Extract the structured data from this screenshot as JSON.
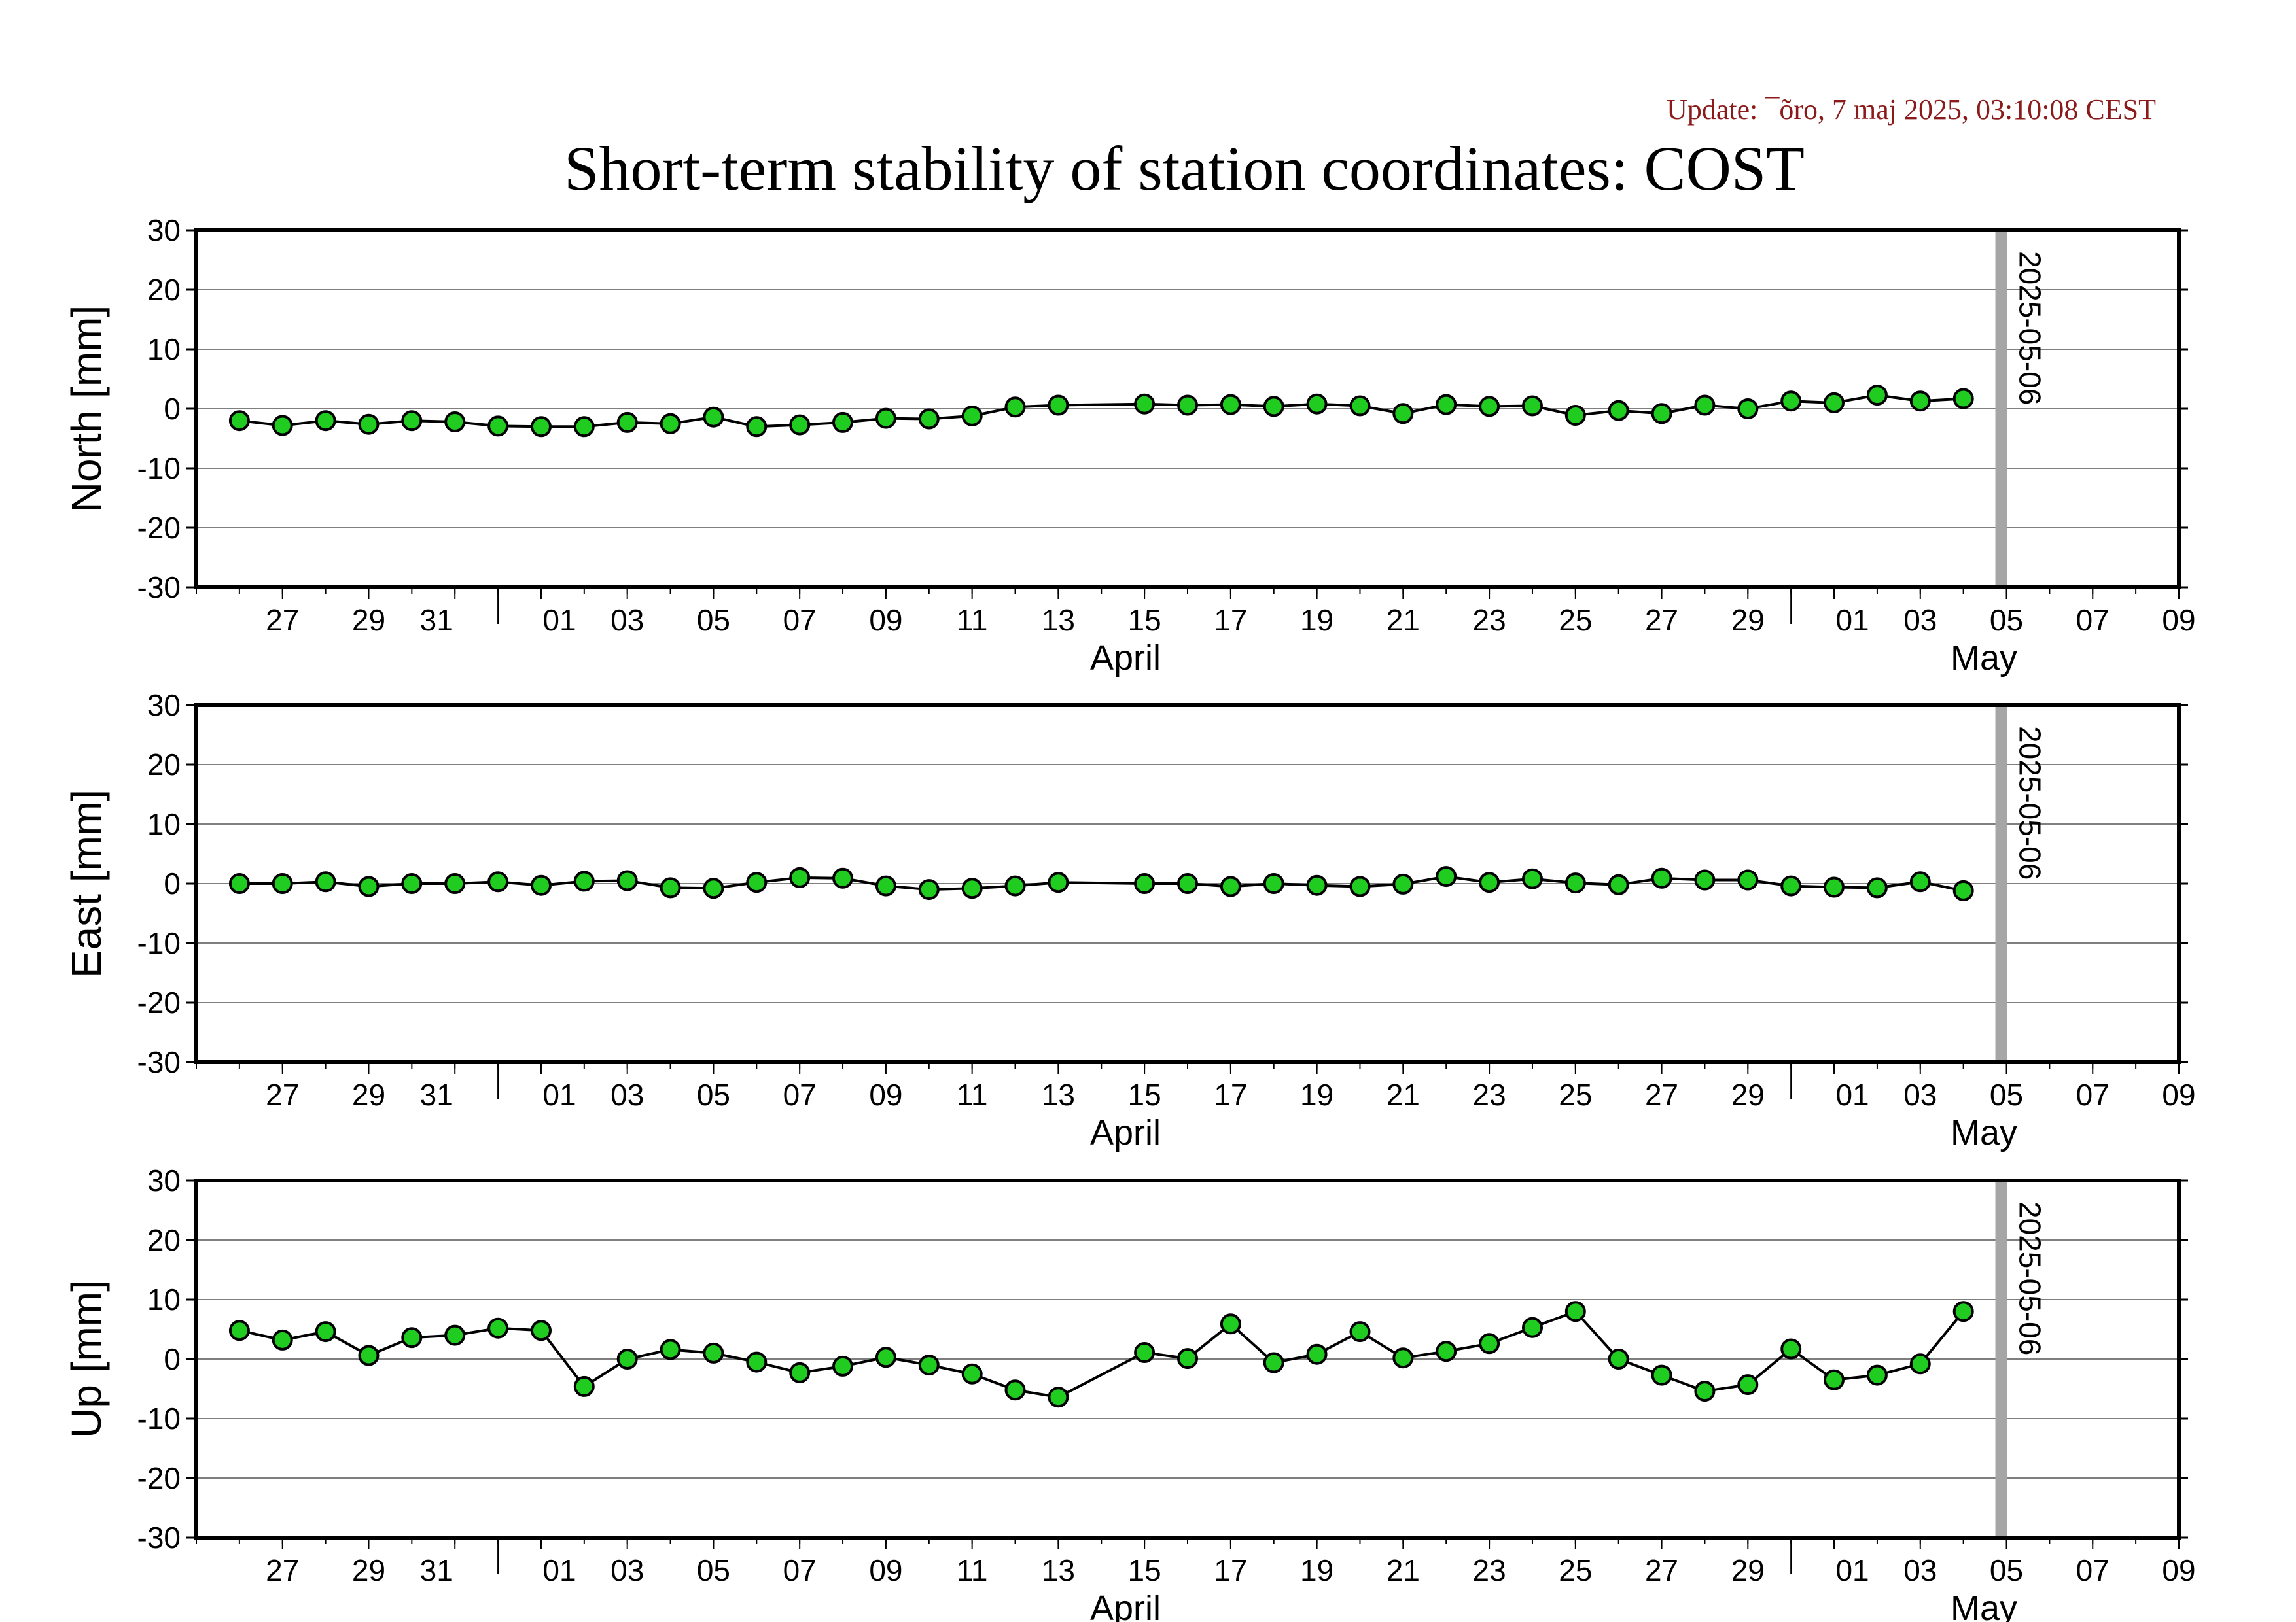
{
  "update_text": "Update: ¯õro, 7 maj 2025, 03:10:08 CEST",
  "title": "Short-term stability of station coordinates: COST",
  "colors": {
    "update_text": "#8b1a1a",
    "marker_fill": "#1fcc1f",
    "marker_stroke": "#000000",
    "line": "#000000",
    "grid": "#7f7f7f",
    "ref_line": "#a6a6a6",
    "frame": "#000000"
  },
  "chart_data": [
    {
      "type": "line",
      "panel": "north",
      "ylabel": "North [mm]",
      "ylim": [
        -30,
        30
      ],
      "yticks": [
        30,
        20,
        10,
        0,
        -10,
        -20,
        -30
      ],
      "xlim": [
        "2025-03-25",
        "2025-05-10"
      ],
      "grid": true,
      "reference_line": {
        "date": "2025-05-06",
        "label": "2025-05-06"
      },
      "x_tick_labels": [
        "27",
        "29",
        "31",
        "01",
        "03",
        "05",
        "07",
        "09",
        "11",
        "13",
        "15",
        "17",
        "19",
        "21",
        "23",
        "25",
        "27",
        "29",
        "01",
        "03",
        "05",
        "07",
        "09"
      ],
      "month_labels": [
        "April",
        "May"
      ],
      "points": [
        [
          "2025-03-26",
          -2.0
        ],
        [
          "2025-03-27",
          -2.8
        ],
        [
          "2025-03-28",
          -2.0
        ],
        [
          "2025-03-29",
          -2.6
        ],
        [
          "2025-03-30",
          -2.0
        ],
        [
          "2025-03-31",
          -2.2
        ],
        [
          "2025-04-01",
          -2.9
        ],
        [
          "2025-04-02",
          -3.0
        ],
        [
          "2025-04-03",
          -3.0
        ],
        [
          "2025-04-04",
          -2.3
        ],
        [
          "2025-04-05",
          -2.5
        ],
        [
          "2025-04-06",
          -1.4
        ],
        [
          "2025-04-07",
          -3.0
        ],
        [
          "2025-04-08",
          -2.7
        ],
        [
          "2025-04-09",
          -2.3
        ],
        [
          "2025-04-10",
          -1.6
        ],
        [
          "2025-04-11",
          -1.7
        ],
        [
          "2025-04-12",
          -1.2
        ],
        [
          "2025-04-13",
          0.3
        ],
        [
          "2025-04-14",
          0.6
        ],
        [
          "2025-04-16",
          0.8
        ],
        [
          "2025-04-17",
          0.6
        ],
        [
          "2025-04-18",
          0.7
        ],
        [
          "2025-04-19",
          0.4
        ],
        [
          "2025-04-20",
          0.8
        ],
        [
          "2025-04-21",
          0.5
        ],
        [
          "2025-04-22",
          -0.8
        ],
        [
          "2025-04-23",
          0.7
        ],
        [
          "2025-04-24",
          0.4
        ],
        [
          "2025-04-25",
          0.5
        ],
        [
          "2025-04-26",
          -1.1
        ],
        [
          "2025-04-27",
          -0.3
        ],
        [
          "2025-04-28",
          -0.8
        ],
        [
          "2025-04-29",
          0.6
        ],
        [
          "2025-04-30",
          0.0
        ],
        [
          "2025-05-01",
          1.3
        ],
        [
          "2025-05-02",
          1.0
        ],
        [
          "2025-05-03",
          2.3
        ],
        [
          "2025-05-04",
          1.3
        ],
        [
          "2025-05-05",
          1.7
        ]
      ]
    },
    {
      "type": "line",
      "panel": "east",
      "ylabel": "East [mm]",
      "ylim": [
        -30,
        30
      ],
      "yticks": [
        30,
        20,
        10,
        0,
        -10,
        -20,
        -30
      ],
      "xlim": [
        "2025-03-25",
        "2025-05-10"
      ],
      "grid": true,
      "reference_line": {
        "date": "2025-05-06",
        "label": "2025-05-06"
      },
      "x_tick_labels": [
        "27",
        "29",
        "31",
        "01",
        "03",
        "05",
        "07",
        "09",
        "11",
        "13",
        "15",
        "17",
        "19",
        "21",
        "23",
        "25",
        "27",
        "29",
        "01",
        "03",
        "05",
        "07",
        "09"
      ],
      "month_labels": [
        "April",
        "May"
      ],
      "points": [
        [
          "2025-03-26",
          0.0
        ],
        [
          "2025-03-27",
          0.0
        ],
        [
          "2025-03-28",
          0.3
        ],
        [
          "2025-03-29",
          -0.5
        ],
        [
          "2025-03-30",
          0.0
        ],
        [
          "2025-03-31",
          0.0
        ],
        [
          "2025-04-01",
          0.3
        ],
        [
          "2025-04-02",
          -0.3
        ],
        [
          "2025-04-03",
          0.4
        ],
        [
          "2025-04-04",
          0.5
        ],
        [
          "2025-04-05",
          -0.7
        ],
        [
          "2025-04-06",
          -0.8
        ],
        [
          "2025-04-07",
          0.2
        ],
        [
          "2025-04-08",
          1.0
        ],
        [
          "2025-04-09",
          0.9
        ],
        [
          "2025-04-10",
          -0.4
        ],
        [
          "2025-04-11",
          -1.0
        ],
        [
          "2025-04-12",
          -0.8
        ],
        [
          "2025-04-13",
          -0.4
        ],
        [
          "2025-04-14",
          0.2
        ],
        [
          "2025-04-16",
          0.0
        ],
        [
          "2025-04-17",
          0.0
        ],
        [
          "2025-04-18",
          -0.5
        ],
        [
          "2025-04-19",
          0.0
        ],
        [
          "2025-04-20",
          -0.3
        ],
        [
          "2025-04-21",
          -0.5
        ],
        [
          "2025-04-22",
          -0.1
        ],
        [
          "2025-04-23",
          1.2
        ],
        [
          "2025-04-24",
          0.2
        ],
        [
          "2025-04-25",
          0.8
        ],
        [
          "2025-04-26",
          0.1
        ],
        [
          "2025-04-27",
          -0.2
        ],
        [
          "2025-04-28",
          0.9
        ],
        [
          "2025-04-29",
          0.6
        ],
        [
          "2025-04-30",
          0.6
        ],
        [
          "2025-05-01",
          -0.4
        ],
        [
          "2025-05-02",
          -0.6
        ],
        [
          "2025-05-03",
          -0.7
        ],
        [
          "2025-05-04",
          0.3
        ],
        [
          "2025-05-05",
          -1.2
        ]
      ]
    },
    {
      "type": "line",
      "panel": "up",
      "ylabel": "Up [mm]",
      "ylim": [
        -30,
        30
      ],
      "yticks": [
        30,
        20,
        10,
        0,
        -10,
        -20,
        -30
      ],
      "xlim": [
        "2025-03-25",
        "2025-05-10"
      ],
      "grid": true,
      "reference_line": {
        "date": "2025-05-06",
        "label": "2025-05-06"
      },
      "x_tick_labels": [
        "27",
        "29",
        "31",
        "01",
        "03",
        "05",
        "07",
        "09",
        "11",
        "13",
        "15",
        "17",
        "19",
        "21",
        "23",
        "25",
        "27",
        "29",
        "01",
        "03",
        "05",
        "07",
        "09"
      ],
      "month_labels": [
        "April",
        "May"
      ],
      "points": [
        [
          "2025-03-26",
          4.8
        ],
        [
          "2025-03-27",
          3.2
        ],
        [
          "2025-03-28",
          4.6
        ],
        [
          "2025-03-29",
          0.6
        ],
        [
          "2025-03-30",
          3.6
        ],
        [
          "2025-03-31",
          4.0
        ],
        [
          "2025-04-01",
          5.2
        ],
        [
          "2025-04-02",
          4.8
        ],
        [
          "2025-04-03",
          -4.6
        ],
        [
          "2025-04-04",
          0.0
        ],
        [
          "2025-04-05",
          1.6
        ],
        [
          "2025-04-06",
          1.0
        ],
        [
          "2025-04-07",
          -0.5
        ],
        [
          "2025-04-08",
          -2.3
        ],
        [
          "2025-04-09",
          -1.2
        ],
        [
          "2025-04-10",
          0.3
        ],
        [
          "2025-04-11",
          -1.0
        ],
        [
          "2025-04-12",
          -2.5
        ],
        [
          "2025-04-13",
          -5.2
        ],
        [
          "2025-04-14",
          -6.4
        ],
        [
          "2025-04-16",
          1.1
        ],
        [
          "2025-04-17",
          0.1
        ],
        [
          "2025-04-18",
          5.9
        ],
        [
          "2025-04-19",
          -0.6
        ],
        [
          "2025-04-20",
          0.8
        ],
        [
          "2025-04-21",
          4.6
        ],
        [
          "2025-04-22",
          0.2
        ],
        [
          "2025-04-23",
          1.3
        ],
        [
          "2025-04-24",
          2.6
        ],
        [
          "2025-04-25",
          5.3
        ],
        [
          "2025-04-26",
          8.0
        ],
        [
          "2025-04-27",
          0.0
        ],
        [
          "2025-04-28",
          -2.7
        ],
        [
          "2025-04-29",
          -5.4
        ],
        [
          "2025-04-30",
          -4.3
        ],
        [
          "2025-05-01",
          1.7
        ],
        [
          "2025-05-02",
          -3.5
        ],
        [
          "2025-05-03",
          -2.7
        ],
        [
          "2025-05-04",
          -0.8
        ],
        [
          "2025-05-05",
          8.0
        ]
      ]
    }
  ]
}
